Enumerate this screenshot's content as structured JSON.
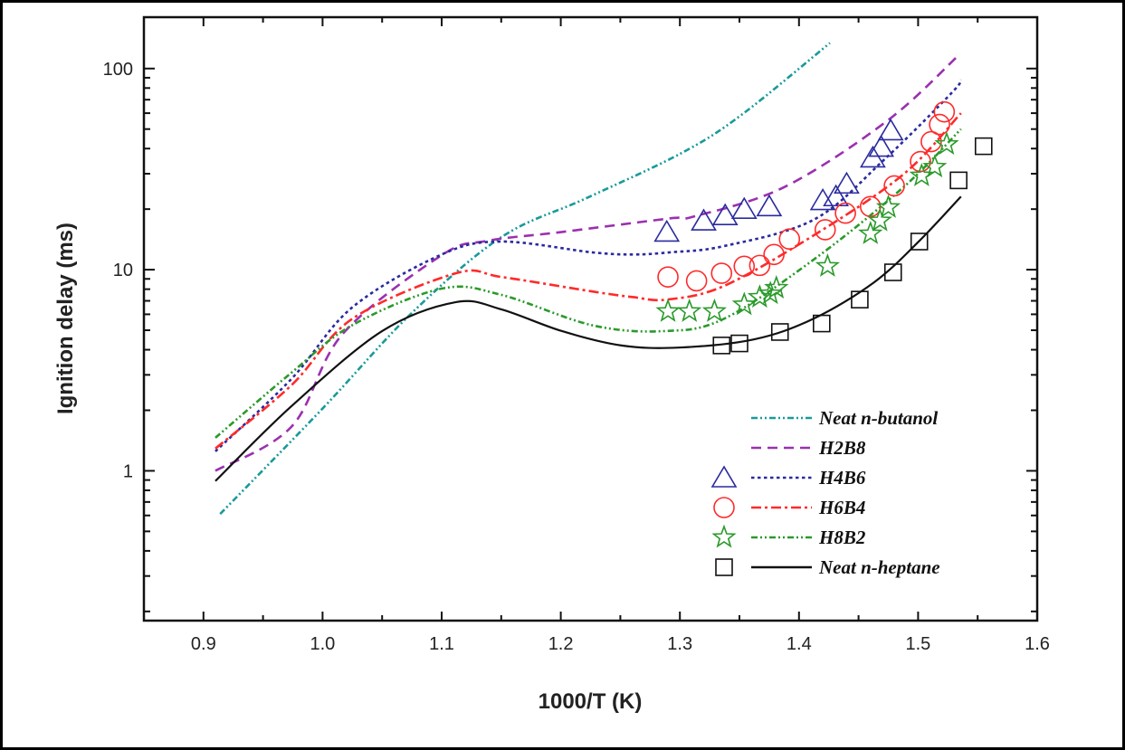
{
  "chart_data": {
    "type": "scatter",
    "title": "",
    "xlabel": "1000/T (K)",
    "ylabel": "Ignition delay (ms)",
    "xlim": [
      0.85,
      1.6
    ],
    "ylim": [
      0.18,
      180
    ],
    "yscale": "log",
    "grid": false,
    "legend_placement": "bottom-right",
    "x_ticks": [
      "0.9",
      "1.0",
      "1.1",
      "1.2",
      "1.3",
      "1.4",
      "1.5",
      "1.6"
    ],
    "y_ticks": [
      "1",
      "10",
      "100"
    ],
    "series": [
      {
        "name": "Neat n-butanol",
        "kind": "line",
        "color": "#1a9a9a",
        "dash": "dash-dot-dot",
        "x": [
          0.914,
          1.0,
          1.075,
          1.15,
          1.221,
          1.301,
          1.352,
          1.426
        ],
        "y": [
          0.61,
          2.04,
          6.1,
          14.5,
          22.6,
          37.9,
          59,
          134
        ]
      },
      {
        "name": "H2B8",
        "kind": "line",
        "color": "#9b30b0",
        "dash": "dashed",
        "x": [
          0.91,
          0.974,
          1.017,
          1.1,
          1.138,
          1.201,
          1.292,
          1.312,
          1.388,
          1.475,
          1.535
        ],
        "y": [
          1.0,
          1.66,
          4.8,
          11.8,
          13.9,
          15.4,
          18.0,
          18.4,
          25.8,
          55.5,
          118
        ]
      },
      {
        "name": "H4B6",
        "kind": "line",
        "color": "#2a2aa0",
        "dash": "dotted",
        "marker": "triangle",
        "x": [
          0.91,
          0.974,
          1.025,
          1.1,
          1.15,
          1.226,
          1.261,
          1.292,
          1.337,
          1.413,
          1.471,
          1.528,
          1.536
        ],
        "y": [
          1.25,
          2.87,
          6.5,
          11.9,
          13.8,
          12.2,
          11.9,
          12.2,
          13.1,
          17.8,
          35,
          75.5,
          88
        ],
        "points_x": [
          1.289,
          1.32,
          1.338,
          1.354,
          1.375,
          1.42,
          1.431,
          1.44,
          1.462,
          1.469,
          1.477
        ],
        "points_y": [
          15.4,
          17.5,
          18.6,
          20.0,
          20.6,
          22.1,
          23.1,
          26.7,
          36.0,
          40.7,
          49.1
        ]
      },
      {
        "name": "H6B4",
        "kind": "line",
        "color": "#ff2a2a",
        "dash": "dash-dot",
        "marker": "circle",
        "x": [
          0.91,
          0.974,
          1.025,
          1.112,
          1.15,
          1.226,
          1.261,
          1.289,
          1.337,
          1.413,
          1.488,
          1.536
        ],
        "y": [
          1.29,
          2.67,
          5.7,
          9.6,
          9.2,
          7.8,
          7.3,
          7.1,
          8.3,
          14.9,
          29.9,
          60
        ],
        "points_x": [
          1.29,
          1.314,
          1.335,
          1.354,
          1.367,
          1.379,
          1.392,
          1.422,
          1.439,
          1.46,
          1.48,
          1.502,
          1.511,
          1.518,
          1.522
        ],
        "points_y": [
          9.2,
          8.8,
          9.6,
          10.4,
          10.5,
          11.9,
          14.2,
          15.8,
          19.1,
          20.6,
          26.1,
          34.5,
          43.3,
          52.7,
          60.9
        ]
      },
      {
        "name": "H8B2",
        "kind": "line",
        "color": "#2a9a2a",
        "dash": "dash-dot-dot",
        "marker": "star",
        "x": [
          0.91,
          0.974,
          1.025,
          1.1,
          1.15,
          1.226,
          1.286,
          1.337,
          1.413,
          1.488,
          1.536
        ],
        "y": [
          1.46,
          3.08,
          5.3,
          8.05,
          7.5,
          5.3,
          4.95,
          5.7,
          11.3,
          25.8,
          50
        ],
        "points_x": [
          1.29,
          1.308,
          1.329,
          1.354,
          1.367,
          1.376,
          1.381,
          1.424,
          1.46,
          1.468,
          1.475,
          1.503,
          1.514,
          1.524
        ],
        "points_y": [
          6.2,
          6.2,
          6.2,
          6.7,
          7.3,
          7.6,
          8.1,
          10.4,
          15.1,
          17.5,
          20.4,
          29.3,
          32.4,
          42.0
        ]
      },
      {
        "name": "Neat n-heptane",
        "kind": "line",
        "color": "#111111",
        "dash": "solid",
        "marker": "square",
        "x": [
          0.91,
          0.974,
          1.05,
          1.112,
          1.15,
          1.201,
          1.251,
          1.299,
          1.362,
          1.412,
          1.463,
          1.501,
          1.536
        ],
        "y": [
          0.89,
          2.1,
          4.95,
          6.9,
          6.35,
          4.95,
          4.2,
          4.1,
          4.5,
          5.7,
          8.65,
          13.9,
          23.1
        ],
        "points_x": [
          1.335,
          1.35,
          1.384,
          1.419,
          1.451,
          1.479,
          1.501,
          1.534,
          1.555
        ],
        "points_y": [
          4.2,
          4.3,
          4.9,
          5.4,
          7.1,
          9.7,
          13.8,
          27.8,
          41.1
        ]
      }
    ]
  }
}
